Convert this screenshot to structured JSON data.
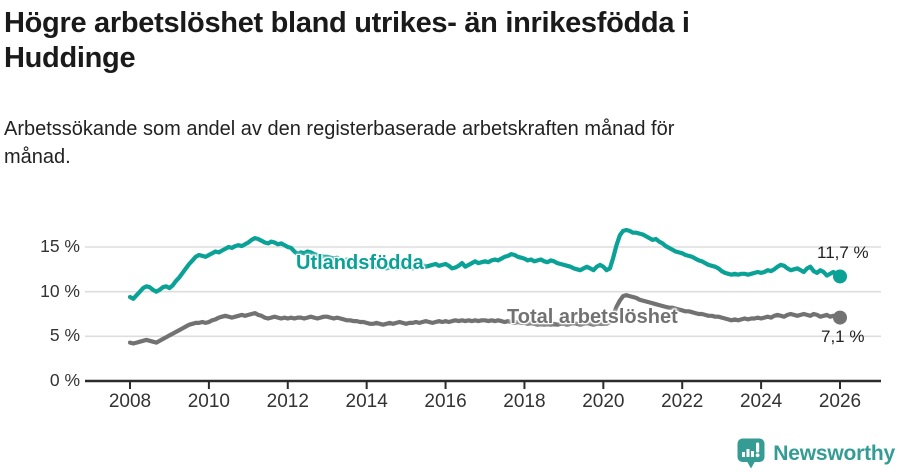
{
  "header": {
    "title_lines": [
      "Högre arbetslöshet bland utrikes- än inrikesfödda i",
      "Huddinge"
    ],
    "subtitle_lines": [
      "Arbetssökande som andel av den registerbaserade arbetskraften månad för",
      "månad."
    ]
  },
  "chart_data": {
    "type": "line",
    "title": "Högre arbetslöshet bland utrikes- än inrikesfödda i Huddinge",
    "subtitle": "Arbetssökande som andel av den registerbaserade arbetskraften månad för månad.",
    "x_unit": "month",
    "x_start_year": 2008,
    "x_end_year": 2026,
    "x_tick_years": [
      2008,
      2010,
      2012,
      2014,
      2016,
      2018,
      2020,
      2022,
      2024,
      2026
    ],
    "x_tick_labels": [
      "2008",
      "2010",
      "2012",
      "2014",
      "2016",
      "2018",
      "2020",
      "2022",
      "2024",
      "2026"
    ],
    "y_ticks": [
      0,
      5,
      10,
      15
    ],
    "y_tick_labels": [
      "0 %",
      "5 %",
      "10 %",
      "15 %"
    ],
    "ylim": [
      0,
      17.5
    ],
    "grid": true,
    "grid_color": "#dedede",
    "axis_color": "#2b2b2b",
    "series": [
      {
        "name": "Utlandsfödda",
        "label_text": "Utlandsfödda",
        "end_label": "11,7 %",
        "end_value": 11.7,
        "color": "#0aa296",
        "values": [
          9.4,
          9.2,
          9.6,
          10.0,
          10.4,
          10.6,
          10.5,
          10.2,
          10.0,
          10.2,
          10.5,
          10.6,
          10.4,
          10.7,
          11.2,
          11.6,
          12.1,
          12.6,
          13.1,
          13.5,
          13.9,
          14.1,
          14.0,
          13.9,
          14.1,
          14.3,
          14.5,
          14.4,
          14.6,
          14.8,
          15.0,
          14.9,
          15.1,
          15.2,
          15.1,
          15.3,
          15.5,
          15.8,
          16.0,
          15.9,
          15.7,
          15.5,
          15.4,
          15.6,
          15.5,
          15.3,
          15.4,
          15.2,
          15.0,
          14.9,
          14.5,
          14.2,
          14.4,
          14.3,
          14.5,
          14.4,
          14.2,
          14.1,
          14.0,
          13.9,
          13.9,
          13.8,
          13.7,
          13.8,
          13.6,
          13.5,
          13.6,
          13.4,
          13.3,
          13.2,
          13.3,
          13.2,
          13.1,
          13.0,
          12.9,
          12.8,
          12.9,
          12.7,
          12.6,
          12.7,
          12.8,
          12.6,
          12.7,
          12.8,
          12.9,
          12.8,
          12.6,
          12.7,
          12.9,
          13.0,
          12.8,
          12.9,
          13.0,
          13.1,
          12.9,
          13.0,
          13.1,
          12.9,
          12.6,
          12.7,
          12.9,
          13.2,
          12.8,
          13.0,
          13.2,
          13.4,
          13.2,
          13.3,
          13.4,
          13.3,
          13.5,
          13.6,
          13.5,
          13.7,
          13.9,
          14.0,
          14.2,
          14.1,
          13.9,
          13.8,
          13.7,
          13.5,
          13.6,
          13.4,
          13.5,
          13.6,
          13.4,
          13.3,
          13.5,
          13.4,
          13.2,
          13.1,
          13.0,
          12.9,
          12.8,
          12.6,
          12.5,
          12.4,
          12.6,
          12.8,
          12.6,
          12.4,
          12.8,
          13.0,
          12.8,
          12.4,
          12.6,
          13.8,
          15.2,
          16.3,
          16.8,
          16.9,
          16.8,
          16.6,
          16.6,
          16.5,
          16.4,
          16.2,
          16.0,
          15.8,
          15.9,
          15.6,
          15.4,
          15.1,
          14.9,
          14.7,
          14.5,
          14.4,
          14.3,
          14.1,
          14.0,
          13.9,
          13.7,
          13.5,
          13.4,
          13.2,
          13.0,
          12.9,
          12.8,
          12.6,
          12.3,
          12.1,
          12.0,
          11.9,
          12.0,
          11.9,
          12.0,
          12.0,
          11.9,
          12.0,
          12.1,
          12.2,
          12.1,
          12.2,
          12.4,
          12.3,
          12.5,
          12.8,
          13.0,
          12.9,
          12.6,
          12.4,
          12.5,
          12.6,
          12.4,
          12.2,
          12.6,
          12.8,
          12.3,
          12.1,
          12.4,
          12.2,
          11.8,
          12.0,
          12.2,
          11.9,
          11.7
        ]
      },
      {
        "name": "Total arbetslöshet",
        "label_text": "Total arbetslöshet",
        "end_label": "7,1 %",
        "end_value": 7.1,
        "color": "#727272",
        "values": [
          4.3,
          4.2,
          4.3,
          4.4,
          4.5,
          4.6,
          4.5,
          4.4,
          4.3,
          4.5,
          4.7,
          4.9,
          5.1,
          5.3,
          5.5,
          5.7,
          5.9,
          6.1,
          6.3,
          6.4,
          6.5,
          6.5,
          6.6,
          6.5,
          6.6,
          6.8,
          6.9,
          7.1,
          7.2,
          7.3,
          7.2,
          7.1,
          7.2,
          7.3,
          7.4,
          7.3,
          7.4,
          7.5,
          7.6,
          7.4,
          7.3,
          7.1,
          7.0,
          7.1,
          7.2,
          7.1,
          7.0,
          7.1,
          7.0,
          7.1,
          7.0,
          7.1,
          7.1,
          7.0,
          7.1,
          7.2,
          7.1,
          7.0,
          7.1,
          7.2,
          7.2,
          7.1,
          7.0,
          7.1,
          7.0,
          6.9,
          6.8,
          6.8,
          6.7,
          6.7,
          6.6,
          6.6,
          6.5,
          6.4,
          6.4,
          6.5,
          6.4,
          6.3,
          6.4,
          6.5,
          6.4,
          6.5,
          6.6,
          6.5,
          6.4,
          6.5,
          6.5,
          6.6,
          6.5,
          6.6,
          6.7,
          6.6,
          6.5,
          6.6,
          6.7,
          6.6,
          6.7,
          6.6,
          6.7,
          6.8,
          6.7,
          6.8,
          6.7,
          6.8,
          6.7,
          6.8,
          6.7,
          6.8,
          6.8,
          6.7,
          6.8,
          6.7,
          6.8,
          6.7,
          6.6,
          6.7,
          6.6,
          6.5,
          6.6,
          6.5,
          6.5,
          6.4,
          6.5,
          6.4,
          6.3,
          6.4,
          6.3,
          6.4,
          6.3,
          6.4,
          6.3,
          6.4,
          6.4,
          6.3,
          6.4,
          6.5,
          6.4,
          6.3,
          6.4,
          6.5,
          6.4,
          6.3,
          6.4,
          6.4,
          6.4,
          6.4,
          6.6,
          7.4,
          8.3,
          9.0,
          9.5,
          9.6,
          9.5,
          9.4,
          9.3,
          9.1,
          9.0,
          8.9,
          8.8,
          8.7,
          8.6,
          8.5,
          8.4,
          8.3,
          8.2,
          8.2,
          8.1,
          8.0,
          7.9,
          7.8,
          7.8,
          7.7,
          7.6,
          7.5,
          7.5,
          7.4,
          7.3,
          7.3,
          7.2,
          7.2,
          7.1,
          7.0,
          6.9,
          6.8,
          6.9,
          6.8,
          6.9,
          7.0,
          6.9,
          7.0,
          7.0,
          7.1,
          7.0,
          7.1,
          7.2,
          7.1,
          7.3,
          7.4,
          7.3,
          7.2,
          7.4,
          7.5,
          7.4,
          7.3,
          7.4,
          7.5,
          7.4,
          7.3,
          7.5,
          7.4,
          7.2,
          7.3,
          7.4,
          7.2,
          7.3,
          7.2,
          7.1
        ]
      }
    ],
    "legend_position": "inline-labels"
  },
  "footer": {
    "brand": "Newsworthy",
    "brand_color": "#349c93"
  }
}
